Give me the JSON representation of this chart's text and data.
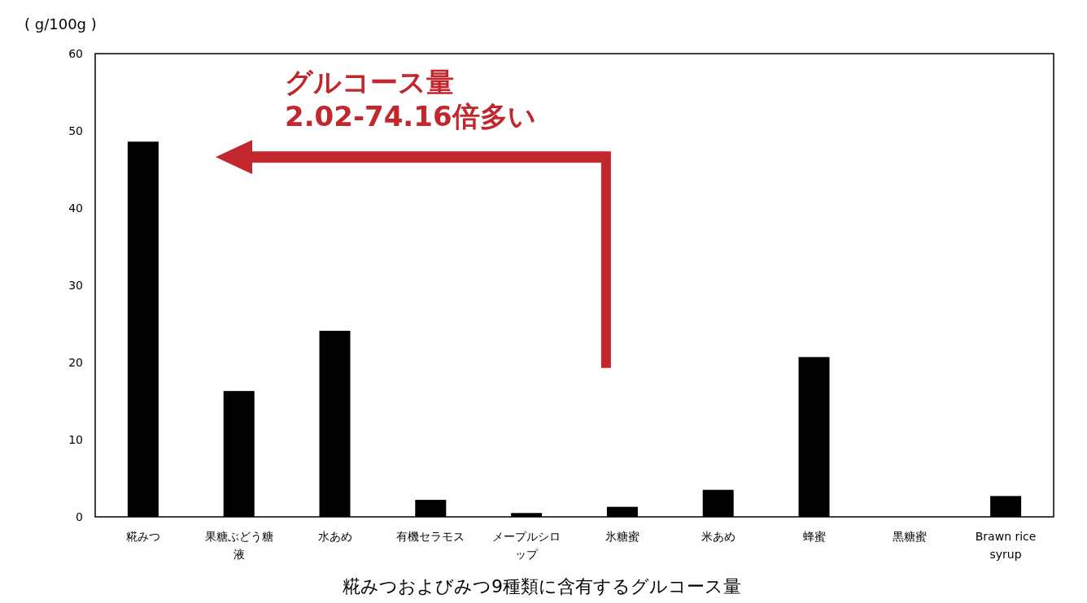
{
  "chart_data": {
    "type": "bar",
    "title": "糀みつおよびみつ9種類に含有するグルコース量",
    "ylabel": "( g/100g )",
    "categories": [
      "糀みつ",
      "果糖ぶどう糖液",
      "水あめ",
      "有機セラモス",
      "メープルシロップ",
      "氷糖蜜",
      "米あめ",
      "蜂蜜",
      "黒糖蜜",
      "Brawn rice syrup"
    ],
    "values": [
      48.6,
      16.3,
      24.1,
      2.2,
      0.5,
      1.3,
      3.5,
      20.7,
      0,
      2.7
    ],
    "color": "#000000",
    "ylim": [
      0,
      60
    ],
    "yticks": [
      0,
      10,
      20,
      30,
      40,
      50,
      60
    ],
    "annotations": [
      "グルコース量\n2.02-74.16倍多い"
    ]
  }
}
